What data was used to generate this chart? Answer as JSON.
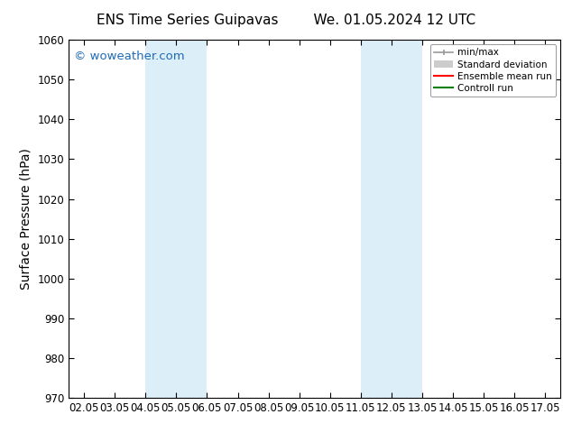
{
  "title_left": "ENS Time Series Guipavas",
  "title_right": "We. 01.05.2024 12 UTC",
  "ylabel": "Surface Pressure (hPa)",
  "ylim": [
    970,
    1060
  ],
  "yticks": [
    970,
    980,
    990,
    1000,
    1010,
    1020,
    1030,
    1040,
    1050,
    1060
  ],
  "xlim": [
    0,
    15
  ],
  "xtick_labels": [
    "02.05",
    "03.05",
    "04.05",
    "05.05",
    "06.05",
    "07.05",
    "08.05",
    "09.05",
    "10.05",
    "11.05",
    "12.05",
    "13.05",
    "14.05",
    "15.05",
    "16.05",
    "17.05"
  ],
  "xtick_positions": [
    0,
    1,
    2,
    3,
    4,
    5,
    6,
    7,
    8,
    9,
    10,
    11,
    12,
    13,
    14,
    15
  ],
  "shaded_bands": [
    {
      "x_start": 2,
      "x_end": 4,
      "color": "#dceef8"
    },
    {
      "x_start": 9,
      "x_end": 11,
      "color": "#dceef8"
    }
  ],
  "background_color": "#ffffff",
  "watermark_text": "© woweather.com",
  "watermark_color": "#1e6bb8",
  "legend_entries": [
    {
      "label": "min/max",
      "color": "#aaaaaa",
      "lw": 1.5
    },
    {
      "label": "Standard deviation",
      "color": "#cccccc",
      "lw": 6
    },
    {
      "label": "Ensemble mean run",
      "color": "#ff0000",
      "lw": 1.5
    },
    {
      "label": "Controll run",
      "color": "#008000",
      "lw": 1.5
    }
  ],
  "grid_color": "#cccccc",
  "tick_fontsize": 8.5,
  "label_fontsize": 10,
  "title_fontsize": 11
}
